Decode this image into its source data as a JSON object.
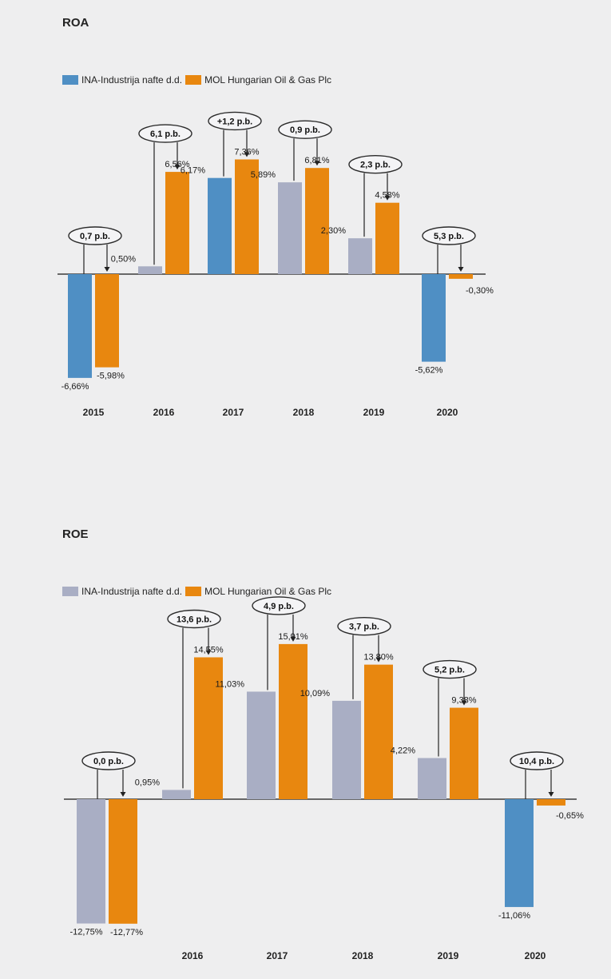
{
  "colors": {
    "ina_blue": "#4f8fc4",
    "ina_gray": "#a9aec4",
    "mol_orange": "#e8870f",
    "axis": "#3a3a3a"
  },
  "chart_data": [
    {
      "type": "bar",
      "title": "ROA",
      "categories": [
        "2015",
        "2016",
        "2017",
        "2018",
        "2019",
        "2020"
      ],
      "series": [
        {
          "name": "INA-Industrija nafte d.d.",
          "values": [
            -6.66,
            0.5,
            6.17,
            5.89,
            2.3,
            -5.62
          ]
        },
        {
          "name": "MOL Hungarian Oil & Gas Plc",
          "values": [
            -5.98,
            6.56,
            7.36,
            6.81,
            4.58,
            -0.3
          ]
        }
      ],
      "value_labels": [
        [
          "-6,66%",
          "0,50%",
          "6,17%",
          "5,89%",
          "2,30%",
          "-5,62%"
        ],
        [
          "-5,98%",
          "6,56%",
          "7,36%",
          "6,81%",
          "4,58%",
          "-0,30%"
        ]
      ],
      "difference_labels": [
        "0,7 p.b.",
        "6,1 p.b.",
        "+1,2 p.b.",
        "0,9 p.b.",
        "2,3 p.b.",
        "5,3 p.b."
      ],
      "ina_bar_colors": [
        "blue",
        "gray",
        "blue",
        "gray",
        "gray",
        "blue"
      ],
      "legend_position": "top-left",
      "grid": false
    },
    {
      "type": "bar",
      "title": "ROE",
      "categories": [
        "",
        "2016",
        "2017",
        "2018",
        "2019",
        "2020"
      ],
      "series": [
        {
          "name": "INA-Industrija nafte d.d.",
          "values": [
            -12.75,
            0.95,
            11.03,
            10.09,
            4.22,
            -11.06
          ]
        },
        {
          "name": "MOL Hungarian Oil & Gas Plc",
          "values": [
            -12.77,
            14.55,
            15.91,
            13.8,
            9.38,
            -0.65
          ]
        }
      ],
      "value_labels": [
        [
          "-12,75%",
          "0,95%",
          "11,03%",
          "10,09%",
          "4,22%",
          "-11,06%"
        ],
        [
          "-12,77%",
          "14,55%",
          "15,91%",
          "13,80%",
          "9,38%",
          "-0,65%"
        ]
      ],
      "difference_labels": [
        "0,0 p.b.",
        "13,6 p.b.",
        "4,9 p.b.",
        "3,7 p.b.",
        "5,2 p.b.",
        "10,4 p.b."
      ],
      "ina_bar_colors": [
        "gray",
        "gray",
        "gray",
        "gray",
        "gray",
        "blue"
      ],
      "legend_position": "top-left",
      "grid": false
    }
  ]
}
